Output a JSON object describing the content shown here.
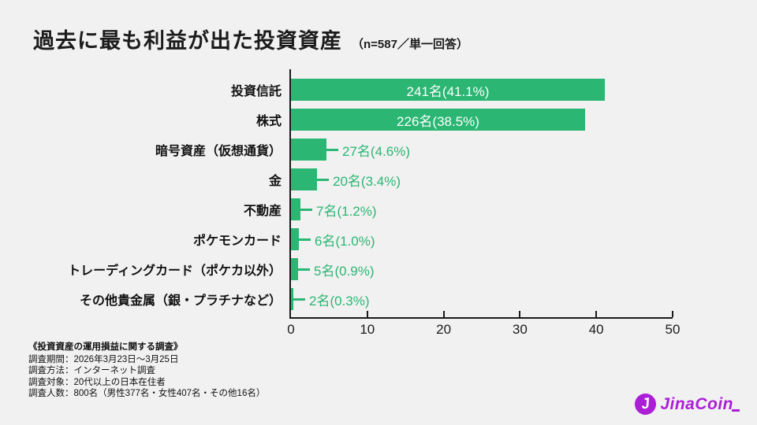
{
  "title": "過去に最も利益が出た投資資産",
  "subtitle": "（n=587／単一回答）",
  "colors": {
    "bar_green": "#2bb673",
    "background": "#f1f1f1",
    "text_black": "#1a1a1a",
    "logo_purple": "#ab1ed6"
  },
  "chart_data": {
    "type": "bar",
    "orientation": "horizontal",
    "title": "過去に最も利益が出た投資資産（n=587／単一回答）",
    "categories": [
      "投資信託",
      "株式",
      "暗号資産（仮想通貨）",
      "金",
      "不動産",
      "ポケモンカード",
      "トレーディングカード（ポケカ以外）",
      "その他貴金属（銀・プラチナなど）"
    ],
    "counts": [
      241,
      226,
      27,
      20,
      7,
      6,
      5,
      2
    ],
    "values_pct": [
      41.1,
      38.5,
      4.6,
      3.4,
      1.2,
      1.0,
      0.9,
      0.3
    ],
    "bar_labels": [
      "241名(41.1%)",
      "226名(38.5%)",
      "27名(4.6%)",
      "20名(3.4%)",
      "7名(1.2%)",
      "6名(1.0%)",
      "5名(0.9%)",
      "2名(0.3%)"
    ],
    "label_inside": [
      true,
      true,
      false,
      false,
      false,
      false,
      false,
      false
    ],
    "xlabel": "",
    "ylabel": "",
    "xlim": [
      0,
      50
    ],
    "x_ticks": [
      0,
      10,
      20,
      30,
      40,
      50
    ],
    "grid": false,
    "legend": "none",
    "bar_color": "#2bb673"
  },
  "footer": {
    "survey_title": "《投資資産の運用損益に関する調査》",
    "lines": [
      "調査期間：2026年3月23日〜3月25日",
      "調査方法：インターネット調査",
      "調査対象：20代以上の日本在住者",
      "調査人数：800名（男性377名・女性407名・その他16名）"
    ]
  },
  "logo": {
    "text": "JinaCoin",
    "icon": "jinacoin-coin-icon",
    "icon_letter": "J"
  }
}
